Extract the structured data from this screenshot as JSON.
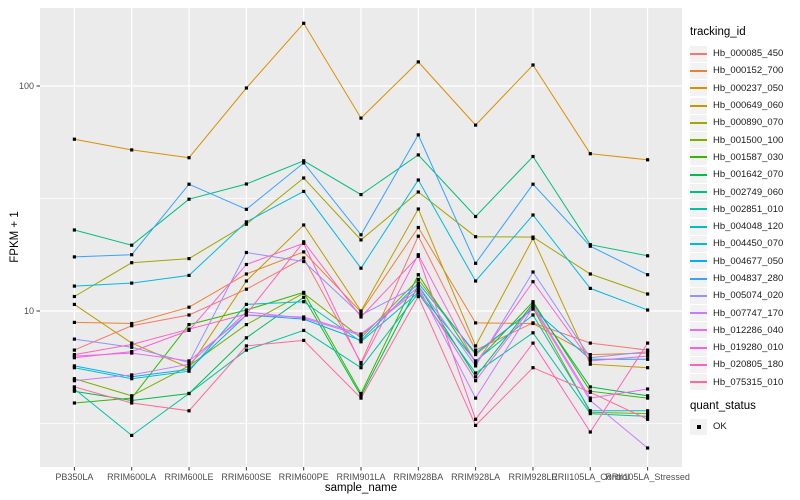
{
  "chart_data": {
    "type": "line",
    "title": "",
    "xlabel": "sample_name",
    "ylabel": "FPKM + 1",
    "y_scale": "log10",
    "grid": true,
    "legend_position": "right",
    "ylim": [
      2.0,
      222
    ],
    "y_ticks": [
      {
        "value": 100,
        "label": "100"
      },
      {
        "value": 10,
        "label": "10"
      }
    ],
    "y_minor_gridlines": [
      3.162,
      31.62
    ],
    "categories": [
      "PB350LA",
      "RRIM600LA",
      "RRIM600LE",
      "RRIM600SE",
      "RRIM600PE",
      "RRIM901LA",
      "RRIM928BA",
      "RRIM928LA",
      "RRIM928LE",
      "RRII105LA_Control",
      "RRII105LA_Stressed"
    ],
    "legend": {
      "color_title": "tracking_id",
      "shape_title": "quant_status",
      "shape_items": [
        {
          "label": "OK",
          "shape": "filled-square",
          "color": "#000000"
        }
      ]
    },
    "point_shape": "filled-square",
    "style": {
      "panel_bg": "#EBEBEB",
      "grid_color": "#FFFFFF",
      "point_color": "#000000",
      "tick_color": "#333333",
      "tick_label_color": "#4D4D4D",
      "axis_title_color": "#000000",
      "legend_key_bg": "#F2F2F2"
    },
    "series": [
      {
        "name": "Hb_000085_450",
        "color": "#F8766D",
        "values": [
          6.7,
          8.6,
          9.6,
          12.5,
          17.2,
          5.9,
          21.5,
          6.7,
          8.85,
          7.2,
          6.7
        ]
      },
      {
        "name": "Hb_000152_700",
        "color": "#EA8331",
        "values": [
          8.9,
          8.8,
          10.4,
          14.6,
          18.3,
          9.9,
          23.5,
          8.85,
          8.8,
          6.4,
          6.5
        ]
      },
      {
        "name": "Hb_000237_050",
        "color": "#D89000",
        "values": [
          58,
          52,
          48,
          98,
          190,
          72,
          128,
          67,
          124,
          50,
          47
        ]
      },
      {
        "name": "Hb_000649_060",
        "color": "#C09B00",
        "values": [
          10.7,
          7.2,
          5.6,
          13.6,
          24.1,
          10.0,
          28.4,
          7.0,
          21.0,
          5.8,
          5.6
        ]
      },
      {
        "name": "Hb_000890_070",
        "color": "#A3A500",
        "values": [
          11.6,
          16.4,
          17.1,
          24.3,
          39.0,
          20.7,
          33.8,
          21.4,
          21.3,
          14.6,
          11.9
        ]
      },
      {
        "name": "Hb_001500_100",
        "color": "#7CAE00",
        "values": [
          5.0,
          4.2,
          5.7,
          8.7,
          12.0,
          7.6,
          13.8,
          6.4,
          10.3,
          3.55,
          3.5
        ]
      },
      {
        "name": "Hb_001587_030",
        "color": "#39B600",
        "values": [
          3.9,
          4.1,
          8.7,
          10.1,
          12.1,
          4.3,
          14.5,
          5.9,
          11.0,
          4.4,
          4.1
        ]
      },
      {
        "name": "Hb_001642_070",
        "color": "#00BB4E",
        "values": [
          4.4,
          4.0,
          4.3,
          7.6,
          11.5,
          4.2,
          13.0,
          5.1,
          10.8,
          4.6,
          4.2
        ]
      },
      {
        "name": "Hb_002749_060",
        "color": "#00BF7D",
        "values": [
          22.9,
          19.6,
          31.4,
          36.7,
          46.5,
          32.9,
          49.4,
          26.3,
          48.6,
          19.7,
          17.6
        ]
      },
      {
        "name": "Hb_002851_010",
        "color": "#00C1A3",
        "values": [
          4.5,
          2.8,
          4.3,
          6.7,
          8.2,
          5.6,
          12.0,
          5.3,
          8.0,
          3.5,
          3.4
        ]
      },
      {
        "name": "Hb_004048_120",
        "color": "#00BFC4",
        "values": [
          5.6,
          5.0,
          5.4,
          10.7,
          11.0,
          7.3,
          12.1,
          6.0,
          9.6,
          3.6,
          3.6
        ]
      },
      {
        "name": "Hb_004450_070",
        "color": "#00BAE0",
        "values": [
          12.9,
          13.3,
          14.4,
          24.9,
          34.0,
          15.5,
          38.2,
          13.6,
          26.7,
          12.6,
          10.1
        ]
      },
      {
        "name": "Hb_004677_050",
        "color": "#00B0F6",
        "values": [
          5.7,
          5.1,
          5.5,
          9.6,
          9.2,
          7.4,
          13.3,
          6.5,
          10.2,
          6.1,
          6.1
        ]
      },
      {
        "name": "Hb_004837_280",
        "color": "#35A2FF",
        "values": [
          17.4,
          17.8,
          36.6,
          28.3,
          45.5,
          21.8,
          60.6,
          16.3,
          36.6,
          19.4,
          14.5
        ]
      },
      {
        "name": "Hb_005074_020",
        "color": "#9590FF",
        "values": [
          7.5,
          6.9,
          5.9,
          18.2,
          16.6,
          9.6,
          13.0,
          5.7,
          14.9,
          6.2,
          6.6
        ]
      },
      {
        "name": "Hb_007747_170",
        "color": "#C77CFF",
        "values": [
          4.9,
          5.2,
          5.8,
          9.9,
          9.3,
          7.8,
          12.8,
          4.1,
          10.4,
          4.0,
          2.46
        ]
      },
      {
        "name": "Hb_012286_040",
        "color": "#E76BF3",
        "values": [
          6.3,
          6.5,
          6.0,
          9.6,
          9.4,
          7.9,
          12.4,
          4.9,
          10.6,
          4.1,
          4.5
        ]
      },
      {
        "name": "Hb_019280_010",
        "color": "#FA62DB",
        "values": [
          6.2,
          6.6,
          8.2,
          16.1,
          20.0,
          5.8,
          17.8,
          5.85,
          13.5,
          6.0,
          6.3
        ]
      },
      {
        "name": "Hb_020805_180",
        "color": "#FF62BC",
        "values": [
          6.4,
          7.1,
          8.3,
          9.7,
          20.3,
          9.4,
          17.5,
          3.3,
          7.2,
          2.9,
          7.2
        ]
      },
      {
        "name": "Hb_075315_010",
        "color": "#FF6A98",
        "values": [
          4.6,
          3.9,
          3.6,
          7.0,
          7.4,
          4.1,
          11.6,
          3.1,
          5.6,
          4.35,
          3.3
        ]
      }
    ]
  }
}
